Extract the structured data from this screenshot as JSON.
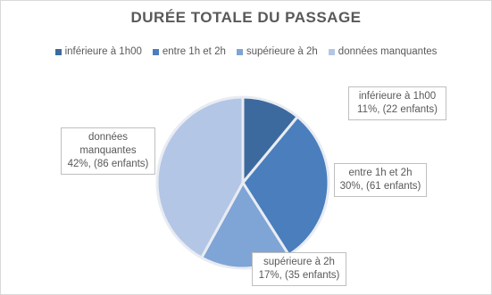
{
  "chart_data": {
    "type": "pie",
    "title": "DURÉE TOTALE DU PASSAGE",
    "categories": [
      "inférieure  à 1h00",
      "entre 1h et 2h",
      "supérieure à 2h",
      "données manquantes"
    ],
    "values": [
      11,
      30,
      17,
      42
    ],
    "value_labels": [
      "11%, (22 enfants)",
      "30%, (61 enfants)",
      "17%, (35 enfants)",
      "42%, (86 enfants)"
    ],
    "colors": [
      "#3d6a9e",
      "#4a7ebd",
      "#7fa4d6",
      "#b4c6e6"
    ],
    "legend": "top"
  }
}
